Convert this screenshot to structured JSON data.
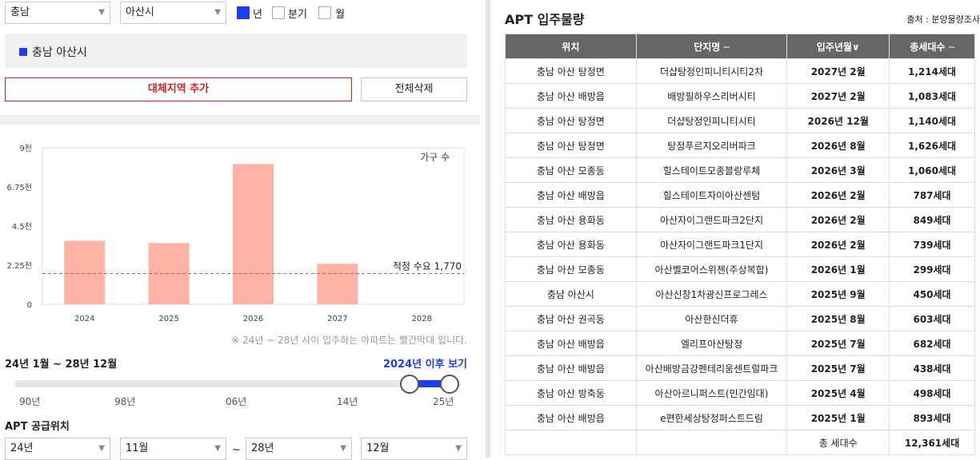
{
  "filters": {
    "province": "충남",
    "city": "아산시",
    "periods": [
      {
        "label": "년",
        "checked": true
      },
      {
        "label": "분기",
        "checked": false
      },
      {
        "label": "월",
        "checked": false
      }
    ]
  },
  "region_tag": "충남 아산시",
  "buttons": {
    "add_region": "대체지역 추가",
    "delete_all": "전체삭제"
  },
  "chart_data": {
    "type": "bar",
    "categories": [
      "2024",
      "2025",
      "2026",
      "2027",
      "2028"
    ],
    "values": [
      3650,
      3520,
      8060,
      2330,
      0
    ],
    "legend_label": "가구 수",
    "yticks": [
      "9천",
      "6.75천",
      "4.5천",
      "2.25천",
      "0"
    ],
    "ylim": [
      0,
      9000
    ],
    "reference_line": {
      "label": "적정 수요 1,770",
      "value": 1770
    },
    "colors": {
      "bar": "#ffb3a5",
      "reference": "#e05050"
    }
  },
  "note": "※ 24년 ~ 28년 사이 입주하는 아파트는 빨간막대 입니다.",
  "period_range": "24년 1월 ~ 28년 12월",
  "after_link": "2024년 이후 보기",
  "slider": {
    "ticks": [
      "90년",
      "98년",
      "06년",
      "14년",
      "25년"
    ]
  },
  "supply": {
    "title": "APT 공급위치",
    "from_year": "24년",
    "from_month": "11월",
    "tilde": "~",
    "to_year": "28년",
    "to_month": "12월"
  },
  "table": {
    "title": "APT 입주물량",
    "source": "출처 : 분양물량조사",
    "headers": [
      "위치",
      "단지명 ─",
      "입주년월∨",
      "총세대수 ─"
    ],
    "rows": [
      [
        "충남 아산 탕정면",
        "더샵탕정인피니티시티2차",
        "2027년 2월",
        "1,214세대"
      ],
      [
        "충남 아산 배방읍",
        "배방필하우스리버시티",
        "2027년 2월",
        "1,083세대"
      ],
      [
        "충남 아산 탕정면",
        "더샵탕정인피니티시티",
        "2026년 12월",
        "1,140세대"
      ],
      [
        "충남 아산 탕정면",
        "탕정푸르지오리버파크",
        "2026년 8월",
        "1,626세대"
      ],
      [
        "충남 아산 모종동",
        "힐스테이트모종블랑루체",
        "2026년 3월",
        "1,060세대"
      ],
      [
        "충남 아산 배방읍",
        "힐스테이트자이아산센텀",
        "2026년 2월",
        "787세대"
      ],
      [
        "충남 아산 용화동",
        "아산자이그랜드파크2단지",
        "2026년 2월",
        "849세대"
      ],
      [
        "충남 아산 용화동",
        "아산자이그랜드파크1단지",
        "2026년 2월",
        "739세대"
      ],
      [
        "충남 아산 모종동",
        "아산벨코어스위첸(주상복합)",
        "2026년 1월",
        "299세대"
      ],
      [
        "충남 아산시",
        "아산신창1차광신프로그레스",
        "2025년 9월",
        "450세대"
      ],
      [
        "충남 아산 권곡동",
        "아산한신더휴",
        "2025년 8월",
        "603세대"
      ],
      [
        "충남 아산 배방읍",
        "엘리프아산탕정",
        "2025년 7월",
        "682세대"
      ],
      [
        "충남 아산 배방읍",
        "아산배방금강펜테리움센트럴파크",
        "2025년 7월",
        "438세대"
      ],
      [
        "충남 아산 방축동",
        "아산아르니퍼스트(민간임대)",
        "2025년 4월",
        "498세대"
      ],
      [
        "충남 아산 배방읍",
        "e편한세상탕정퍼스트드림",
        "2025년 1월",
        "893세대"
      ]
    ],
    "total_label": "총 세대수",
    "total_value": "12,361세대"
  }
}
